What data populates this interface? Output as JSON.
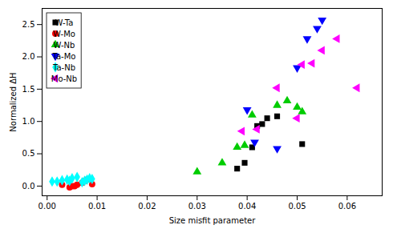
{
  "chart_data": {
    "type": "scatter",
    "xlabel": "Size misfit parameter",
    "ylabel": "Normalized ΔH",
    "xlim": [
      -0.001,
      0.067
    ],
    "ylim": [
      -0.15,
      2.75
    ],
    "xticks": [
      {
        "value": 0,
        "label": "0.00"
      },
      {
        "value": 0.01,
        "label": "0.01"
      },
      {
        "value": 0.02,
        "label": "0.02"
      },
      {
        "value": 0.03,
        "label": "0.03"
      },
      {
        "value": 0.04,
        "label": "0.04"
      },
      {
        "value": 0.05,
        "label": "0.05"
      },
      {
        "value": 0.06,
        "label": "0.06"
      }
    ],
    "yticks": [
      {
        "value": 0,
        "label": "0.0"
      },
      0.5,
      {
        "value": 1,
        "label": "1.0"
      },
      1.5,
      {
        "value": 2,
        "label": "2.0"
      },
      2.5
    ],
    "grid": false,
    "legend": "upper left",
    "series": [
      {
        "name": "W-Ta",
        "color": "black",
        "marker": "square",
        "x": [
          0.038,
          0.0395,
          0.041,
          0.042,
          0.043,
          0.044,
          0.046,
          0.051
        ],
        "values": [
          0.27,
          0.36,
          0.6,
          0.93,
          0.96,
          1.05,
          1.08,
          0.65
        ]
      },
      {
        "name": "W-Mo",
        "color": "#FF0000",
        "marker": "circle",
        "x": [
          0.003,
          0.0045,
          0.005,
          0.0055,
          0.006,
          0.007,
          0.0075,
          0.008,
          0.009
        ],
        "values": [
          0.02,
          -0.02,
          0.0,
          0.0,
          0.02,
          0.05,
          0.08,
          0.1,
          0.03
        ]
      },
      {
        "name": "W-Nb",
        "color": "#00CC00",
        "marker": "triangle-up",
        "x": [
          0.03,
          0.035,
          0.038,
          0.0395,
          0.041,
          0.046,
          0.048,
          0.05,
          0.051
        ],
        "values": [
          0.22,
          0.36,
          0.6,
          0.63,
          1.1,
          1.25,
          1.32,
          1.22,
          1.15
        ]
      },
      {
        "name": "Ta-Mo",
        "color": "#0000FF",
        "marker": "triangle-down",
        "x": [
          0.04,
          0.0415,
          0.046,
          0.05,
          0.052,
          0.054,
          0.055
        ],
        "values": [
          1.18,
          0.68,
          0.58,
          1.83,
          2.28,
          2.44,
          2.57
        ]
      },
      {
        "name": "Ta-Nb",
        "color": "#00FFFF",
        "marker": "diamond",
        "x": [
          0.001,
          0.002,
          0.003,
          0.004,
          0.0045,
          0.005,
          0.006,
          0.007,
          0.0075,
          0.008,
          0.0085,
          0.009
        ],
        "values": [
          0.07,
          0.07,
          0.09,
          0.1,
          0.08,
          0.12,
          0.14,
          0.06,
          0.08,
          0.1,
          0.12,
          0.11
        ]
      },
      {
        "name": "Mo-Nb",
        "color": "#FF00FF",
        "marker": "triangle-left",
        "x": [
          0.039,
          0.042,
          0.046,
          0.05,
          0.051,
          0.053,
          0.055,
          0.058,
          0.062
        ],
        "values": [
          0.85,
          0.88,
          1.52,
          1.05,
          1.88,
          1.9,
          2.1,
          2.28,
          1.52
        ]
      }
    ]
  }
}
